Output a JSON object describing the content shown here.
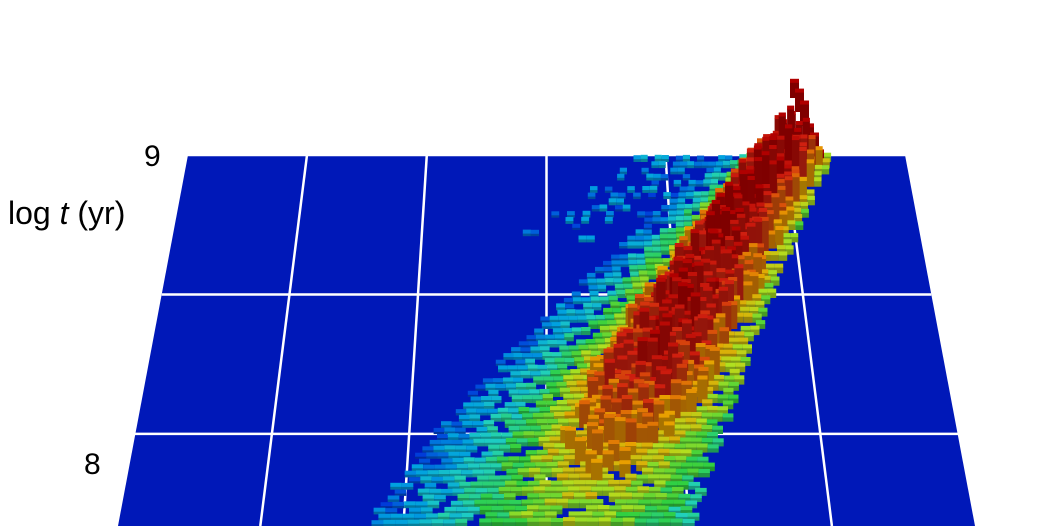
{
  "chart_data": {
    "type": "heatmap",
    "subtype": "3d-histogram",
    "title": "",
    "ylabel": {
      "prefix": "log ",
      "var": "t",
      "suffix": " (yr)"
    },
    "y_ticks": [
      {
        "value": 9,
        "label": "9"
      },
      {
        "value": 8,
        "label": "8"
      }
    ],
    "ylim": [
      7.67,
      9
    ],
    "grid": true,
    "colors": {
      "base": "#0018b8",
      "grid": "#ffffff",
      "colormap": [
        "#0030d8",
        "#00a0e0",
        "#20d0c0",
        "#30d040",
        "#b0e020",
        "#e8a000",
        "#d02010",
        "#b00000"
      ]
    },
    "density_ridge": [
      {
        "logt": 7.7,
        "intensity": 0.55
      },
      {
        "logt": 7.8,
        "intensity": 0.62
      },
      {
        "logt": 7.9,
        "intensity": 0.7
      },
      {
        "logt": 8.0,
        "intensity": 0.78
      },
      {
        "logt": 8.1,
        "intensity": 0.86
      },
      {
        "logt": 8.2,
        "intensity": 0.92
      },
      {
        "logt": 8.3,
        "intensity": 0.95
      },
      {
        "logt": 8.4,
        "intensity": 0.96
      },
      {
        "logt": 8.5,
        "intensity": 0.96
      },
      {
        "logt": 8.6,
        "intensity": 0.97
      },
      {
        "logt": 8.7,
        "intensity": 0.98
      },
      {
        "logt": 8.8,
        "intensity": 0.99
      },
      {
        "logt": 8.9,
        "intensity": 1.0
      },
      {
        "logt": 9.0,
        "intensity": 1.0
      }
    ]
  }
}
